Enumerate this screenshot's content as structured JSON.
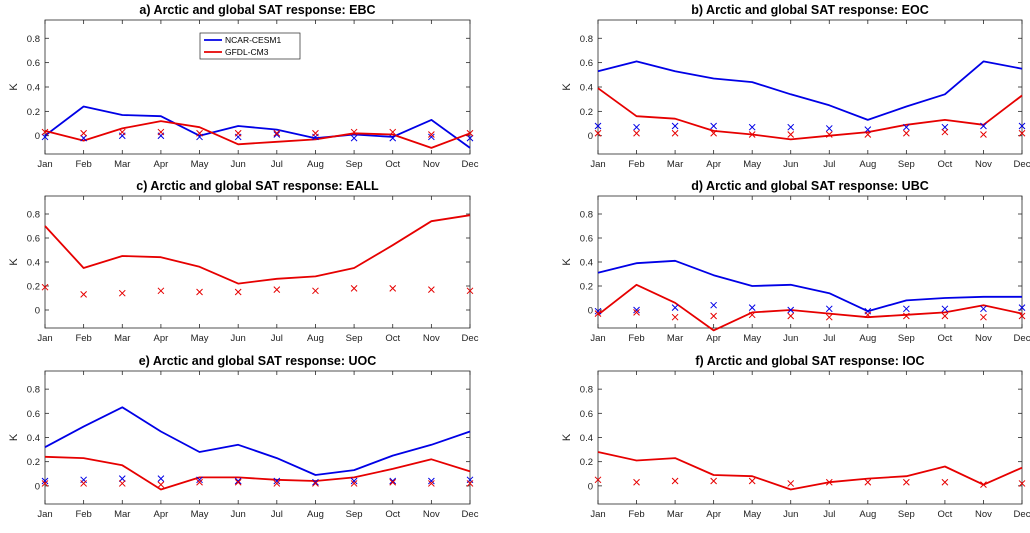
{
  "colors": {
    "ncar": "#0000e6",
    "gfdl": "#e60000"
  },
  "legend": {
    "ncar": "NCAR-CESM1",
    "gfdl": "GFDL-CM3"
  },
  "chart_data": [
    {
      "type": "line",
      "title": "a) Arctic and global SAT response: EBC",
      "ylabel": "K",
      "categories": [
        "Jan",
        "Feb",
        "Mar",
        "Apr",
        "May",
        "Jun",
        "Jul",
        "Aug",
        "Sep",
        "Oct",
        "Nov",
        "Dec"
      ],
      "ylim": [
        -0.15,
        0.95
      ],
      "yticks": [
        0,
        0.2,
        0.4,
        0.6,
        0.8
      ],
      "series": [
        {
          "name": "NCAR-CESM1",
          "style": "line",
          "color": "#0000e6",
          "values": [
            0.0,
            0.24,
            0.17,
            0.16,
            0.0,
            0.08,
            0.05,
            -0.02,
            0.01,
            -0.01,
            0.13,
            -0.1
          ]
        },
        {
          "name": "GFDL-CM3",
          "style": "line",
          "color": "#e60000",
          "values": [
            0.04,
            -0.04,
            0.06,
            0.12,
            0.07,
            -0.07,
            -0.05,
            -0.03,
            0.02,
            0.01,
            -0.1,
            0.02
          ]
        },
        {
          "style": "marker",
          "color": "#0000e6",
          "values": [
            -0.01,
            -0.02,
            0.0,
            0.0,
            -0.01,
            -0.01,
            0.01,
            -0.01,
            -0.02,
            -0.02,
            -0.01,
            -0.02
          ]
        },
        {
          "style": "marker",
          "color": "#e60000",
          "values": [
            0.03,
            0.02,
            0.03,
            0.03,
            0.02,
            0.02,
            0.02,
            0.02,
            0.03,
            0.03,
            0.01,
            0.02
          ]
        }
      ]
    },
    {
      "type": "line",
      "title": "b) Arctic and global SAT response: EOC",
      "ylabel": "K",
      "categories": [
        "Jan",
        "Feb",
        "Mar",
        "Apr",
        "May",
        "Jun",
        "Jul",
        "Aug",
        "Sep",
        "Oct",
        "Nov",
        "Dec"
      ],
      "ylim": [
        -0.15,
        0.95
      ],
      "yticks": [
        0,
        0.2,
        0.4,
        0.6,
        0.8
      ],
      "series": [
        {
          "name": "NCAR-CESM1",
          "style": "line",
          "color": "#0000e6",
          "values": [
            0.53,
            0.61,
            0.53,
            0.47,
            0.44,
            0.34,
            0.25,
            0.13,
            0.24,
            0.34,
            0.61,
            0.55
          ]
        },
        {
          "name": "GFDL-CM3",
          "style": "line",
          "color": "#e60000",
          "values": [
            0.39,
            0.16,
            0.14,
            0.04,
            0.01,
            -0.03,
            0.0,
            0.03,
            0.09,
            0.13,
            0.09,
            0.33
          ]
        },
        {
          "style": "marker",
          "color": "#0000e6",
          "values": [
            0.08,
            0.07,
            0.08,
            0.08,
            0.07,
            0.07,
            0.06,
            0.05,
            0.07,
            0.07,
            0.08,
            0.08
          ]
        },
        {
          "style": "marker",
          "color": "#e60000",
          "values": [
            0.02,
            0.02,
            0.02,
            0.02,
            0.01,
            0.01,
            0.01,
            0.01,
            0.02,
            0.03,
            0.01,
            0.02
          ]
        }
      ]
    },
    {
      "type": "line",
      "title": "c) Arctic and global SAT response: EALL",
      "ylabel": "K",
      "categories": [
        "Jan",
        "Feb",
        "Mar",
        "Apr",
        "May",
        "Jun",
        "Jul",
        "Aug",
        "Sep",
        "Oct",
        "Nov",
        "Dec"
      ],
      "ylim": [
        -0.15,
        0.95
      ],
      "yticks": [
        0,
        0.2,
        0.4,
        0.6,
        0.8
      ],
      "series": [
        {
          "name": "GFDL-CM3",
          "style": "line",
          "color": "#e60000",
          "values": [
            0.7,
            0.35,
            0.45,
            0.44,
            0.36,
            0.22,
            0.26,
            0.28,
            0.35,
            0.54,
            0.74,
            0.79
          ]
        },
        {
          "style": "marker",
          "color": "#e60000",
          "values": [
            0.19,
            0.13,
            0.14,
            0.16,
            0.15,
            0.15,
            0.17,
            0.16,
            0.18,
            0.18,
            0.17,
            0.16
          ]
        }
      ]
    },
    {
      "type": "line",
      "title": "d) Arctic and global SAT response: UBC",
      "ylabel": "K",
      "categories": [
        "Jan",
        "Feb",
        "Mar",
        "Apr",
        "May",
        "Jun",
        "Jul",
        "Aug",
        "Sep",
        "Oct",
        "Nov",
        "Dec"
      ],
      "ylim": [
        -0.15,
        0.95
      ],
      "yticks": [
        0,
        0.2,
        0.4,
        0.6,
        0.8
      ],
      "series": [
        {
          "name": "NCAR-CESM1",
          "style": "line",
          "color": "#0000e6",
          "values": [
            0.31,
            0.39,
            0.41,
            0.29,
            0.2,
            0.21,
            0.14,
            -0.01,
            0.08,
            0.1,
            0.11,
            0.11
          ]
        },
        {
          "name": "GFDL-CM3",
          "style": "line",
          "color": "#e60000",
          "values": [
            -0.04,
            0.21,
            0.06,
            -0.17,
            -0.02,
            0.0,
            -0.03,
            -0.06,
            -0.04,
            -0.02,
            0.04,
            -0.03
          ]
        },
        {
          "style": "marker",
          "color": "#0000e6",
          "values": [
            -0.01,
            0.0,
            0.02,
            0.04,
            0.02,
            0.0,
            0.01,
            -0.01,
            0.01,
            0.01,
            0.01,
            0.02
          ]
        },
        {
          "style": "marker",
          "color": "#e60000",
          "values": [
            -0.03,
            -0.02,
            -0.06,
            -0.05,
            -0.04,
            -0.05,
            -0.06,
            -0.04,
            -0.05,
            -0.05,
            -0.06,
            -0.05
          ]
        }
      ]
    },
    {
      "type": "line",
      "title": "e) Arctic and global SAT response: UOC",
      "ylabel": "K",
      "categories": [
        "Jan",
        "Feb",
        "Mar",
        "Apr",
        "May",
        "Jun",
        "Jul",
        "Aug",
        "Sep",
        "Oct",
        "Nov",
        "Dec"
      ],
      "ylim": [
        -0.15,
        0.95
      ],
      "yticks": [
        0,
        0.2,
        0.4,
        0.6,
        0.8
      ],
      "series": [
        {
          "name": "NCAR-CESM1",
          "style": "line",
          "color": "#0000e6",
          "values": [
            0.32,
            0.49,
            0.65,
            0.45,
            0.28,
            0.34,
            0.23,
            0.09,
            0.13,
            0.25,
            0.34,
            0.45
          ]
        },
        {
          "name": "GFDL-CM3",
          "style": "line",
          "color": "#e60000",
          "values": [
            0.24,
            0.23,
            0.17,
            -0.03,
            0.07,
            0.07,
            0.05,
            0.04,
            0.07,
            0.14,
            0.22,
            0.12
          ]
        },
        {
          "style": "marker",
          "color": "#0000e6",
          "values": [
            0.04,
            0.05,
            0.06,
            0.06,
            0.05,
            0.04,
            0.04,
            0.03,
            0.04,
            0.04,
            0.04,
            0.05
          ]
        },
        {
          "style": "marker",
          "color": "#e60000",
          "values": [
            0.02,
            0.02,
            0.02,
            0.01,
            0.03,
            0.03,
            0.02,
            0.02,
            0.02,
            0.03,
            0.02,
            0.02
          ]
        }
      ]
    },
    {
      "type": "line",
      "title": "f) Arctic and global SAT response: IOC",
      "ylabel": "K",
      "categories": [
        "Jan",
        "Feb",
        "Mar",
        "Apr",
        "May",
        "Jun",
        "Jul",
        "Aug",
        "Sep",
        "Oct",
        "Nov",
        "Dec"
      ],
      "ylim": [
        -0.15,
        0.95
      ],
      "yticks": [
        0,
        0.2,
        0.4,
        0.6,
        0.8
      ],
      "series": [
        {
          "name": "GFDL-CM3",
          "style": "line",
          "color": "#e60000",
          "values": [
            0.28,
            0.21,
            0.23,
            0.09,
            0.08,
            -0.03,
            0.03,
            0.06,
            0.08,
            0.16,
            0.01,
            0.15
          ]
        },
        {
          "style": "marker",
          "color": "#e60000",
          "values": [
            0.05,
            0.03,
            0.04,
            0.04,
            0.04,
            0.02,
            0.03,
            0.03,
            0.03,
            0.03,
            0.01,
            0.02
          ]
        }
      ]
    }
  ]
}
